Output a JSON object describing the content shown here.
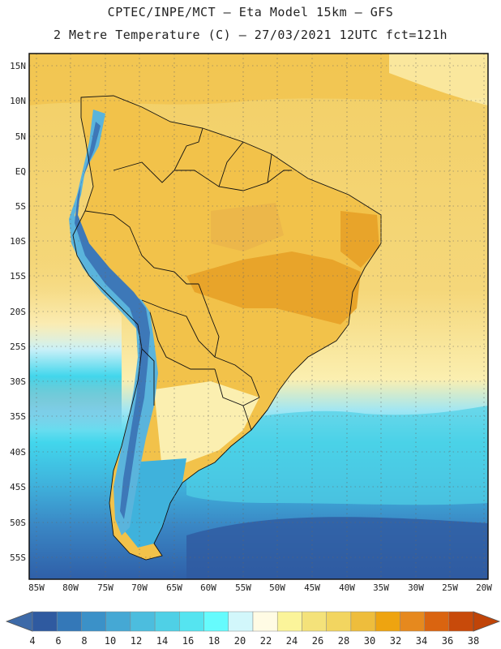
{
  "header": {
    "line1": "CPTEC/INPE/MCT –  Eta Model 15km – GFS",
    "line2": "2 Metre Temperature (C) – 27/03/2021 12UTC fct=121h"
  },
  "map": {
    "lat_labels": [
      "15N",
      "10N",
      "5N",
      "EQ",
      "5S",
      "10S",
      "15S",
      "20S",
      "25S",
      "30S",
      "35S",
      "40S",
      "45S",
      "50S",
      "55S"
    ],
    "lon_labels": [
      "85W",
      "80W",
      "75W",
      "70W",
      "65W",
      "60W",
      "55W",
      "50W",
      "45W",
      "40W",
      "35W",
      "30W",
      "25W",
      "20W"
    ],
    "colors": {
      "ocean_south_deep": "#2f5fa8",
      "ocean_mid": "#3f8fcc",
      "ocean_cyan": "#42d6ec",
      "subtropical": "#f5d77a",
      "tropical": "#f2c24a",
      "hot": "#e8a42a",
      "andes": "#5ab4dc",
      "andes_high": "#3d78b8"
    }
  },
  "colorbar": {
    "labels": [
      "4",
      "6",
      "8",
      "10",
      "12",
      "14",
      "16",
      "18",
      "20",
      "22",
      "24",
      "26",
      "28",
      "30",
      "32",
      "34",
      "36",
      "38"
    ],
    "colors": [
      "#2f5aa0",
      "#3478b8",
      "#3b91c8",
      "#45a8d4",
      "#4cbdde",
      "#4fd0e6",
      "#55e4f0",
      "#66fbfd",
      "#d2f7fb",
      "#fffbe4",
      "#fbf49a",
      "#f4e27a",
      "#f2d560",
      "#eebd3c",
      "#eea410",
      "#e6891e",
      "#da6410",
      "#c84a0a"
    ],
    "low_color": "#3d6aa8",
    "high_color": "#c04408"
  }
}
